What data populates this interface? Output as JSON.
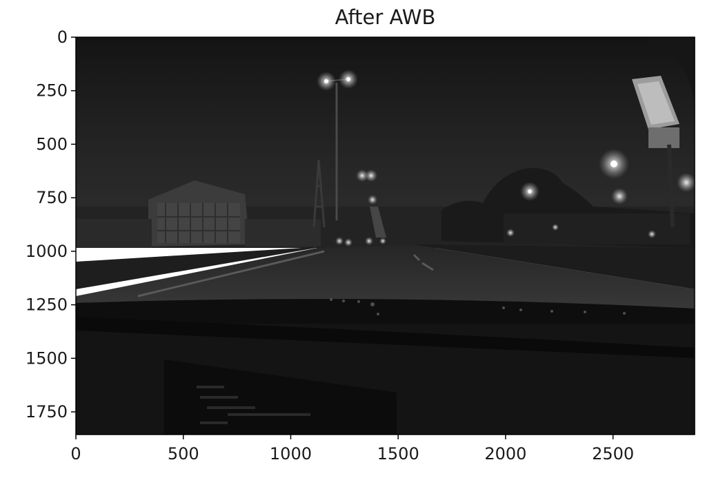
{
  "figure": {
    "title": "After AWB",
    "image_kind": "grayscale night dashcam photo: road ahead with street lamps, buildings on the left, trees and lights on the right, dashboard in the foreground",
    "colors": {
      "sky": "#1c1c1c",
      "road": "#262626",
      "dashboard": "#0d0d0d",
      "lamp_glow": "#e6e6e6",
      "axis": "#000000"
    }
  },
  "axes": {
    "xlim": [
      0,
      2880
    ],
    "ylim": [
      1856,
      0
    ],
    "x_ticks": [
      {
        "value": 0,
        "label": "0"
      },
      {
        "value": 500,
        "label": "500"
      },
      {
        "value": 1000,
        "label": "1000"
      },
      {
        "value": 1500,
        "label": "1500"
      },
      {
        "value": 2000,
        "label": "2000"
      },
      {
        "value": 2500,
        "label": "2500"
      }
    ],
    "y_ticks": [
      {
        "value": 0,
        "label": "0"
      },
      {
        "value": 250,
        "label": "250"
      },
      {
        "value": 500,
        "label": "500"
      },
      {
        "value": 750,
        "label": "750"
      },
      {
        "value": 1000,
        "label": "1000"
      },
      {
        "value": 1250,
        "label": "1250"
      },
      {
        "value": 1500,
        "label": "1500"
      },
      {
        "value": 1750,
        "label": "1750"
      }
    ]
  }
}
